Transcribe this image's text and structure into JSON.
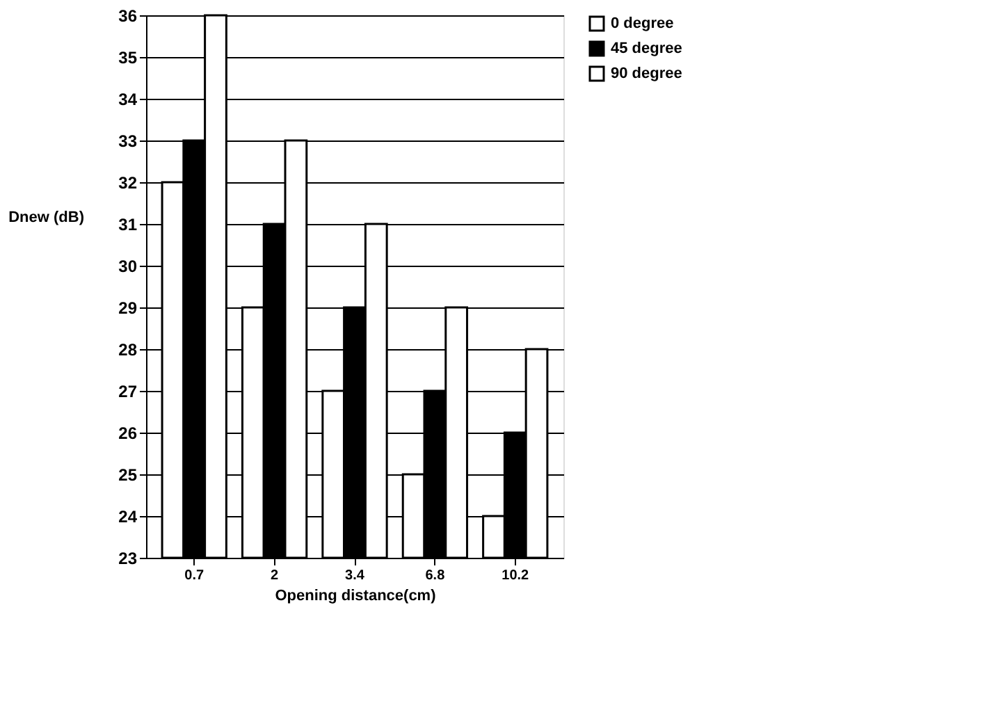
{
  "chart_data": {
    "type": "bar",
    "xlabel": "Opening distance(cm)",
    "ylabel": "Dnew (dB)",
    "categories": [
      "0.7",
      "2",
      "3.4",
      "6.8",
      "10.2"
    ],
    "series": [
      {
        "name": "0 degree",
        "color": "#ffffff",
        "values": [
          32,
          29,
          27,
          25,
          24
        ]
      },
      {
        "name": "45 degree",
        "color": "#000000",
        "values": [
          33,
          31,
          29,
          27,
          26
        ]
      },
      {
        "name": "90 degree",
        "color": "#ffffff",
        "values": [
          36,
          33,
          31,
          29,
          28
        ]
      }
    ],
    "ylim": [
      23,
      36
    ],
    "yticks": [
      23,
      24,
      25,
      26,
      27,
      28,
      29,
      30,
      31,
      32,
      33,
      34,
      35,
      36
    ],
    "grid": "y",
    "legend": "right"
  }
}
